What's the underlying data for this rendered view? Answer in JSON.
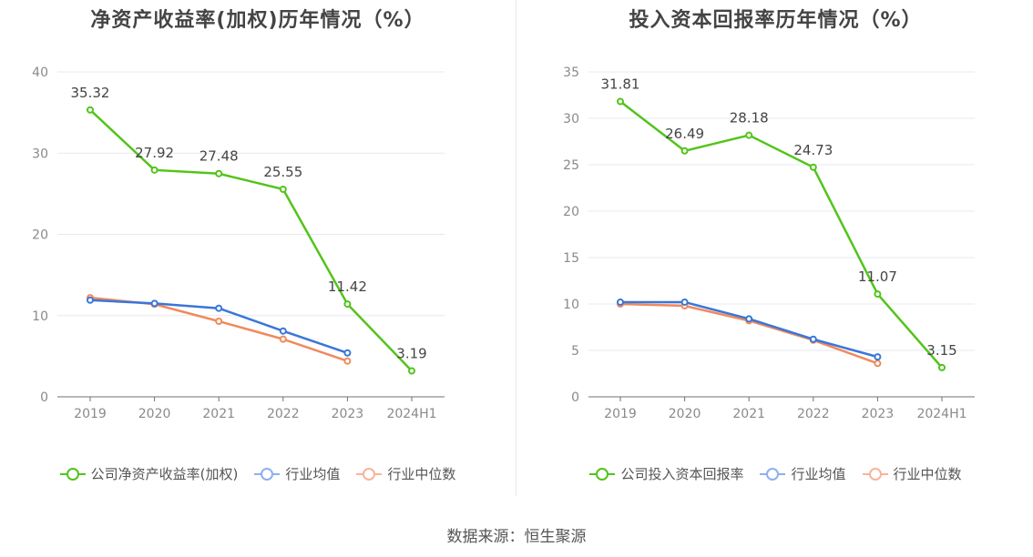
{
  "chart_data": [
    {
      "type": "line",
      "title": "净资产收益率(加权)历年情况（%）",
      "categories": [
        "2019",
        "2020",
        "2021",
        "2022",
        "2023",
        "2024H1"
      ],
      "ylim": [
        0,
        40
      ],
      "yticks": [
        "0",
        "10",
        "20",
        "30",
        "40"
      ],
      "ytick_values": [
        0,
        10,
        20,
        30,
        40
      ],
      "series": [
        {
          "name": "公司净资产收益率(加权)",
          "color": "#52c41a",
          "values": [
            35.32,
            27.92,
            27.48,
            25.55,
            11.42,
            3.19
          ],
          "labels": [
            "35.32",
            "27.92",
            "27.48",
            "25.55",
            "11.42",
            "3.19"
          ]
        },
        {
          "name": "行业均值",
          "color": "#3a76d8",
          "values": [
            11.9,
            11.5,
            10.9,
            8.1,
            5.4,
            null
          ]
        },
        {
          "name": "行业中位数",
          "color": "#f08a5d",
          "values": [
            12.2,
            11.4,
            9.3,
            7.1,
            4.4,
            null
          ]
        }
      ],
      "legend_position": "bottom"
    },
    {
      "type": "line",
      "title": "投入资本回报率历年情况（%）",
      "categories": [
        "2019",
        "2020",
        "2021",
        "2022",
        "2023",
        "2024H1"
      ],
      "ylim": [
        0,
        35
      ],
      "yticks": [
        "0",
        "5",
        "10",
        "15",
        "20",
        "25",
        "30",
        "35"
      ],
      "ytick_values": [
        0,
        5,
        10,
        15,
        20,
        25,
        30,
        35
      ],
      "series": [
        {
          "name": "公司投入资本回报率",
          "color": "#52c41a",
          "values": [
            31.81,
            26.49,
            28.18,
            24.73,
            11.07,
            3.15
          ],
          "labels": [
            "31.81",
            "26.49",
            "28.18",
            "24.73",
            "11.07",
            "3.15"
          ]
        },
        {
          "name": "行业均值",
          "color": "#3a76d8",
          "values": [
            10.2,
            10.2,
            8.4,
            6.2,
            4.3,
            null
          ]
        },
        {
          "name": "行业中位数",
          "color": "#f08a5d",
          "values": [
            10.0,
            9.8,
            8.2,
            6.1,
            3.6,
            null
          ]
        }
      ],
      "legend_position": "bottom"
    }
  ],
  "legend_colors": {
    "company": "#52c41a",
    "mean": "#8fb0ee",
    "median": "#f8b49a"
  },
  "footer": {
    "source": "数据来源：恒生聚源"
  }
}
